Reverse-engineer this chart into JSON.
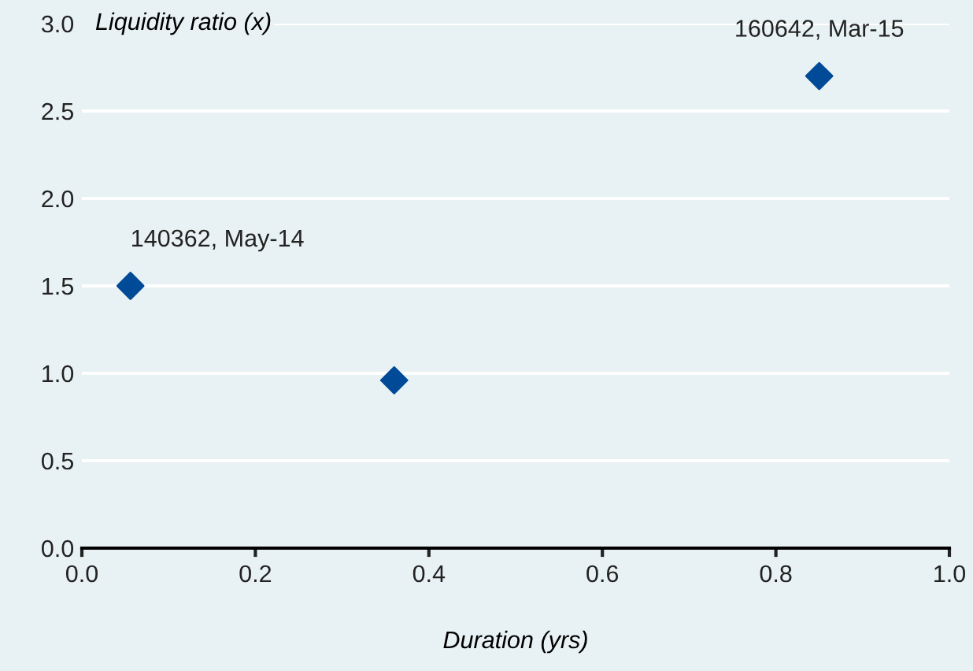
{
  "chart_data": {
    "type": "scatter",
    "xlabel": "Duration (yrs)",
    "ylabel": "Liquidity ratio (x)",
    "x": [
      0.056,
      0.36,
      0.85
    ],
    "values": [
      1.5,
      0.96,
      2.7
    ],
    "color": "#004a98",
    "marker": "diamond",
    "xlim": [
      0,
      1
    ],
    "xticks": [
      {
        "value": 0,
        "label": "0.0"
      },
      0.2,
      0.4,
      0.6,
      0.8,
      {
        "value": 1,
        "label": "1.0"
      }
    ],
    "ylim": [
      0,
      3
    ],
    "yticks": [
      {
        "value": 0,
        "label": "0.0"
      },
      0.5,
      {
        "value": 1,
        "label": "1.0"
      },
      1.5,
      {
        "value": 2,
        "label": "2.0"
      },
      2.5,
      {
        "value": 3,
        "label": "3.0"
      }
    ],
    "grid": "y",
    "annotations": [
      {
        "text": "140362, May-14",
        "x": 0.056,
        "y": 1.5
      },
      {
        "text": "160642, Mar-15",
        "x": 0.85,
        "y": 2.7
      }
    ]
  }
}
